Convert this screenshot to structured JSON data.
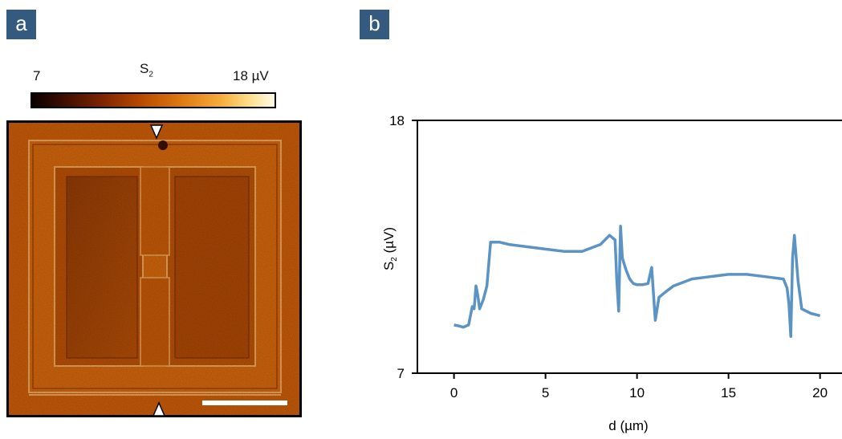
{
  "panels": {
    "a": {
      "badge": "a"
    },
    "b": {
      "badge": "b"
    }
  },
  "colorbar": {
    "min_label": "7",
    "max_label": "18 µV",
    "title_main": "S",
    "title_sub": "2"
  },
  "colors": {
    "badge": "#345a80",
    "line": "#5b93c4",
    "map_base": "#c65a08",
    "scale_bar": "#ffffff"
  },
  "chart_data": {
    "type": "line",
    "xlabel": "d (µm)",
    "ylabel_main": "S",
    "ylabel_sub": "2",
    "ylabel_unit": " (µV)",
    "xlim": [
      -2,
      21.2
    ],
    "ylim": [
      7,
      18
    ],
    "xticks": [
      0,
      5,
      10,
      15,
      20
    ],
    "yticks": [
      7,
      18
    ],
    "grid": false,
    "series": [
      {
        "x": [
          0,
          0.3,
          0.5,
          0.8,
          1.0,
          1.1,
          1.2,
          1.3,
          1.4,
          1.6,
          1.8,
          2.0,
          2.5,
          3.0,
          4.0,
          5.0,
          6.0,
          7.0,
          8.0,
          8.5,
          8.8,
          8.9,
          9.0,
          9.1,
          9.2,
          9.4,
          9.6,
          9.8,
          10.0,
          10.3,
          10.6,
          10.8,
          11.0,
          11.2,
          11.5,
          12.0,
          13.0,
          14.0,
          15.0,
          16.0,
          17.0,
          18.0,
          18.2,
          18.3,
          18.4,
          18.5,
          18.6,
          18.8,
          19.0,
          19.5,
          20.0
        ],
        "y": [
          9.1,
          9.05,
          9.0,
          9.1,
          9.9,
          9.8,
          10.8,
          10.4,
          9.8,
          10.2,
          10.8,
          12.7,
          12.7,
          12.6,
          12.5,
          12.4,
          12.3,
          12.3,
          12.6,
          13.0,
          12.8,
          11.0,
          9.7,
          13.4,
          12.0,
          11.5,
          11.1,
          10.9,
          10.85,
          10.85,
          10.9,
          11.6,
          9.3,
          10.3,
          10.5,
          10.8,
          11.1,
          11.2,
          11.3,
          11.3,
          11.2,
          11.1,
          10.7,
          10.0,
          8.6,
          12.0,
          13.0,
          11.0,
          9.8,
          9.6,
          9.5
        ]
      }
    ]
  }
}
